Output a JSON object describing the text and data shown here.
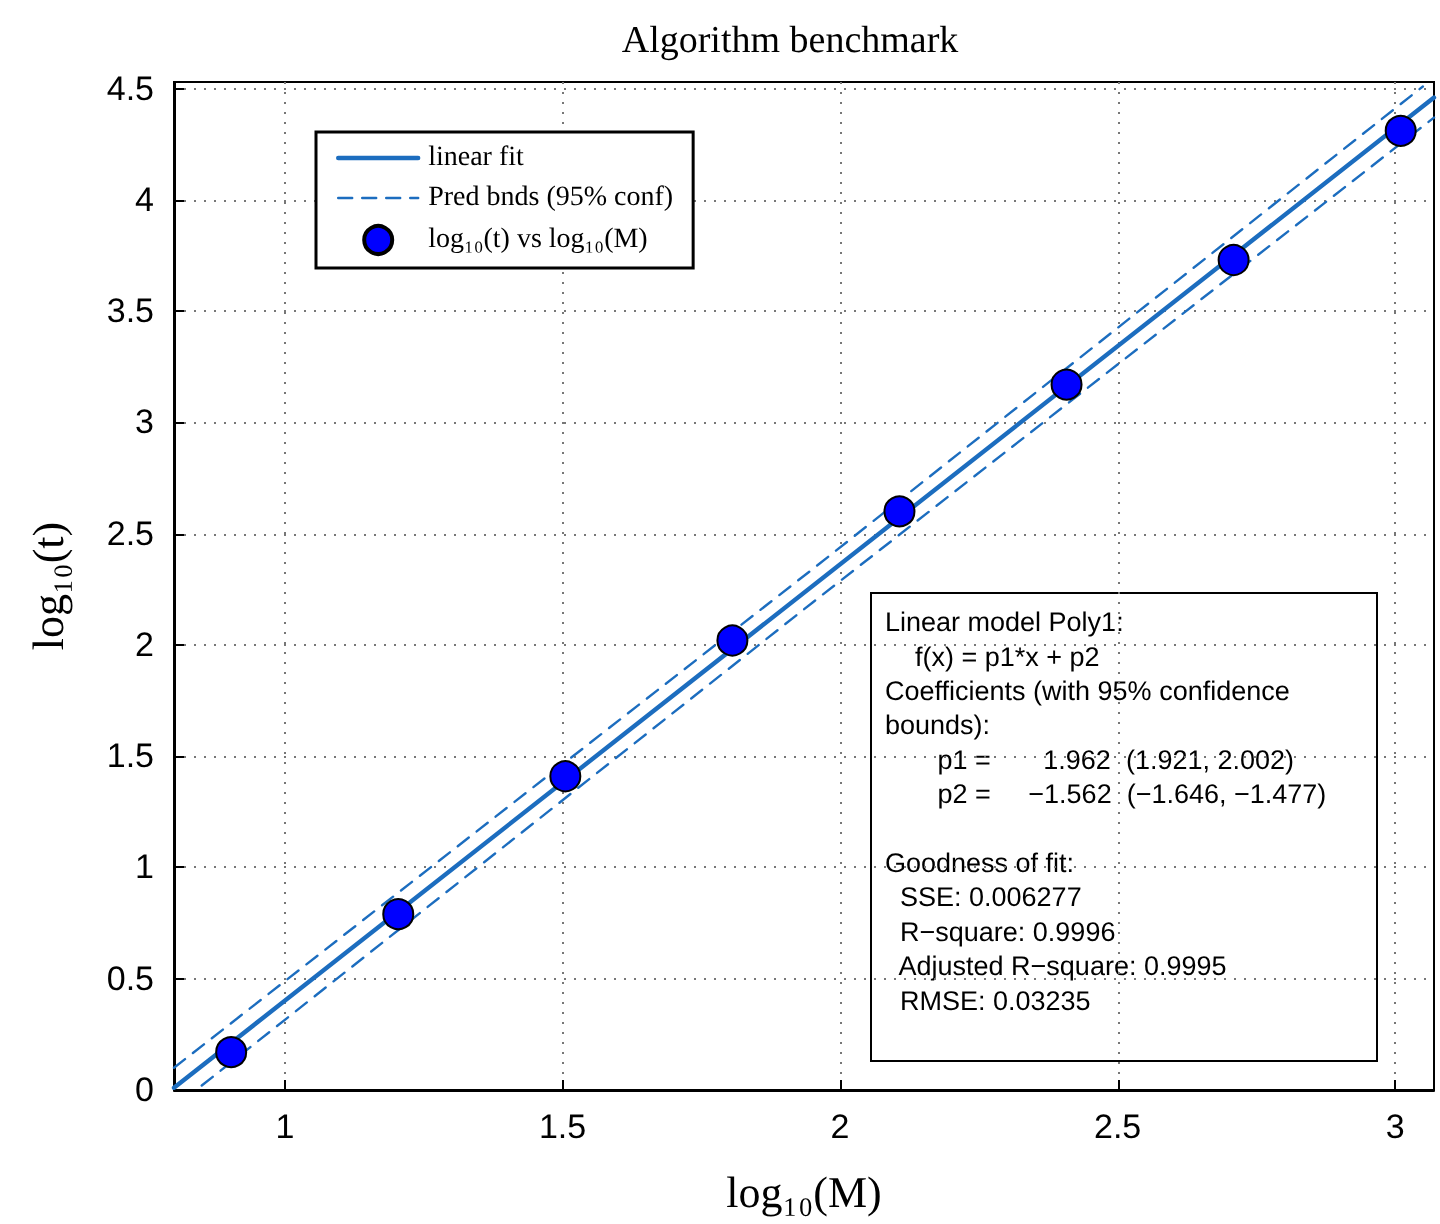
{
  "chart_data": {
    "type": "scatter",
    "title": "Algorithm benchmark",
    "xlabel": "log₁₀(M)",
    "ylabel": "log₁₀(t)",
    "xlim": [
      0.8,
      3.07
    ],
    "xticks": [
      1,
      1.5,
      2,
      2.5,
      3
    ],
    "ylim": [
      0,
      4.53
    ],
    "yticks": [
      0,
      0.5,
      1,
      1.5,
      2,
      2.5,
      3,
      3.5,
      4,
      4.5
    ],
    "grid": true,
    "legend": "top left",
    "series": [
      {
        "name": "linear fit",
        "type": "line",
        "color": "#1c6dbf",
        "line_style": "solid",
        "marker": "none",
        "x": [
          0.8,
          3.07
        ],
        "values": [
          0.01,
          4.46
        ]
      },
      {
        "name": "Pred bnds (95% conf)",
        "type": "line",
        "color": "#1c6dbf",
        "line_style": "dashed",
        "marker": "none",
        "x": [
          0.8,
          1.95,
          3.05
        ],
        "values": [
          0.1,
          2.34,
          4.51
        ]
      },
      {
        "type": "line",
        "color": "#1c6dbf",
        "line_style": "dashed",
        "marker": "none",
        "x": [
          0.85,
          1.95,
          3.07
        ],
        "values": [
          0.02,
          2.19,
          4.37
        ]
      },
      {
        "name": "log₁₀(t) vs log₁₀(M)",
        "color": "#0000ff",
        "marker": "circle",
        "x": [
          0.903,
          1.204,
          1.505,
          1.806,
          2.107,
          2.408,
          2.709,
          3.01
        ],
        "values": [
          0.17,
          0.79,
          1.41,
          2.02,
          2.6,
          3.17,
          3.73,
          4.31
        ]
      }
    ],
    "annotations": [
      "Linear model Poly1:\n    f(x) = p1*x + p2\nCoefficients (with 95% confidence\nbounds):\n       p1 =       1.962  (1.921, 2.002)\n       p2 =     −1.562  (−1.646, −1.477)",
      "Goodness of fit:\n  SSE: 0.006277\n  R−square: 0.9996\n  Adjusted R−square: 0.9995\n  RMSE: 0.03235"
    ]
  }
}
